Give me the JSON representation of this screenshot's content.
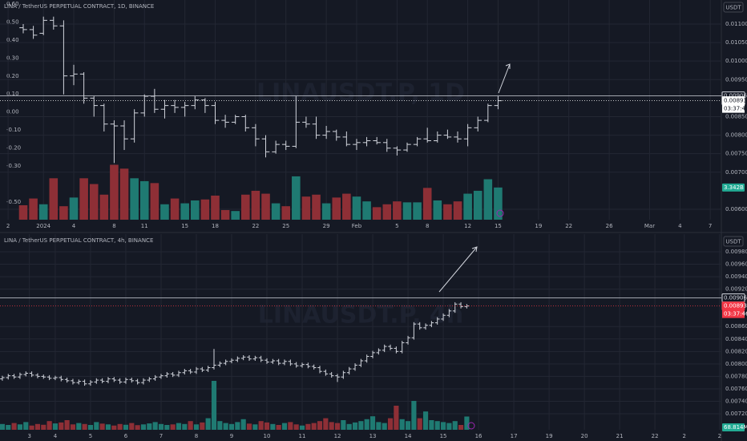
{
  "chart_data": [
    {
      "type": "ohlc",
      "title": "LINA / TetherUS PERPETUAL CONTRACT, 1D, BINANCE",
      "watermark": "LINAUSDT.P, 1D",
      "unit": "USDT",
      "bar_color": "#d1d4dc",
      "up_color": "#1f7a72",
      "down_color": "#8e2f36",
      "grid": true,
      "xlim": [
        -2.3,
        69.1
      ],
      "xticks": [
        {
          "value": -1.5,
          "label": "2"
        },
        {
          "value": 2,
          "label": "2024"
        },
        {
          "value": 5,
          "label": "4"
        },
        {
          "value": 9,
          "label": "8"
        },
        {
          "value": 12,
          "label": "11"
        },
        {
          "value": 16,
          "label": "15"
        },
        {
          "value": 19,
          "label": "18"
        },
        {
          "value": 23,
          "label": "22"
        },
        {
          "value": 26,
          "label": "25"
        },
        {
          "value": 30,
          "label": "29"
        },
        {
          "value": 33,
          "label": "Feb"
        },
        {
          "value": 37,
          "label": "5"
        },
        {
          "value": 40,
          "label": "8"
        },
        {
          "value": 44,
          "label": "12"
        },
        {
          "value": 47,
          "label": "15"
        },
        {
          "value": 51,
          "label": "19"
        },
        {
          "value": 54,
          "label": "22"
        },
        {
          "value": 58,
          "label": "26"
        },
        {
          "value": 62,
          "label": "Mar"
        },
        {
          "value": 65,
          "label": "4"
        },
        {
          "value": 68,
          "label": "7"
        }
      ],
      "ylim": [
        0.005718,
        0.011649
      ],
      "yticks": [
        {
          "value": 0.011,
          "label": "0.01100"
        },
        {
          "value": 0.0105,
          "label": "0.01050"
        },
        {
          "value": 0.01,
          "label": "0.01000"
        },
        {
          "value": 0.0095,
          "label": "0.00950"
        },
        {
          "value": 0.0085,
          "label": "0.00850"
        },
        {
          "value": 0.008,
          "label": "0.00800"
        },
        {
          "value": 0.0075,
          "label": "0.00750"
        },
        {
          "value": 0.007,
          "label": "0.00700"
        },
        {
          "value": 0.006,
          "label": "0.00600"
        }
      ],
      "y2lim": [
        -0.598,
        0.622
      ],
      "y2ticks": [
        {
          "value": 0.6,
          "label": "0.60"
        },
        {
          "value": 0.5,
          "label": "0.50"
        },
        {
          "value": 0.4,
          "label": "0.40"
        },
        {
          "value": 0.3,
          "label": "0.30"
        },
        {
          "value": 0.2,
          "label": "0.20"
        },
        {
          "value": 0.1,
          "label": "0.10"
        },
        {
          "value": 0,
          "label": "0.00"
        },
        {
          "value": -0.1,
          "label": "-0.10"
        },
        {
          "value": -0.2,
          "label": "-0.20"
        },
        {
          "value": -0.3,
          "label": "-0.30"
        },
        {
          "value": -0.5,
          "label": "-0.50"
        }
      ],
      "open": [
        0.0109,
        0.01085,
        0.01075,
        0.0111,
        0.01095,
        0.0096,
        0.00965,
        0.009,
        0.0088,
        0.0083,
        0.00825,
        0.0079,
        0.0086,
        0.00905,
        0.0087,
        0.0088,
        0.00875,
        0.0088,
        0.00895,
        0.0088,
        0.0084,
        0.00835,
        0.0085,
        0.0082,
        0.0079,
        0.00755,
        0.00775,
        0.0077,
        0.00835,
        0.0083,
        0.008,
        0.0081,
        0.00795,
        0.00775,
        0.0078,
        0.00785,
        0.0078,
        0.00765,
        0.0076,
        0.00775,
        0.0079,
        0.00785,
        0.008,
        0.00795,
        0.0079,
        0.0082,
        0.0084,
        0.0088
      ],
      "high": [
        0.011,
        0.01095,
        0.0112,
        0.0112,
        0.0111,
        0.0099,
        0.0097,
        0.00905,
        0.00885,
        0.0084,
        0.0084,
        0.0087,
        0.0091,
        0.00925,
        0.00895,
        0.00895,
        0.0089,
        0.00905,
        0.009,
        0.0089,
        0.00855,
        0.00855,
        0.00855,
        0.0083,
        0.008,
        0.00785,
        0.00785,
        0.00905,
        0.0085,
        0.0085,
        0.00825,
        0.00815,
        0.0081,
        0.0079,
        0.00795,
        0.00795,
        0.0079,
        0.0077,
        0.0078,
        0.00795,
        0.0082,
        0.0081,
        0.00815,
        0.0081,
        0.0083,
        0.0085,
        0.00885,
        0.00906
      ],
      "low": [
        0.01075,
        0.0106,
        0.0107,
        0.01085,
        0.0091,
        0.00935,
        0.00885,
        0.0085,
        0.0081,
        0.00725,
        0.0076,
        0.0078,
        0.0085,
        0.0086,
        0.00845,
        0.0086,
        0.0085,
        0.0087,
        0.0086,
        0.0083,
        0.0082,
        0.0083,
        0.0081,
        0.0077,
        0.0074,
        0.0075,
        0.0076,
        0.00765,
        0.0082,
        0.0079,
        0.0079,
        0.00785,
        0.0077,
        0.0076,
        0.0077,
        0.00775,
        0.00755,
        0.00745,
        0.00755,
        0.0077,
        0.0078,
        0.0078,
        0.0079,
        0.0078,
        0.0077,
        0.0081,
        0.00835,
        0.0087
      ],
      "close": [
        0.01085,
        0.0107,
        0.0111,
        0.01095,
        0.0096,
        0.00965,
        0.009,
        0.0088,
        0.0083,
        0.00825,
        0.0079,
        0.0086,
        0.00905,
        0.0087,
        0.0088,
        0.00875,
        0.0088,
        0.00895,
        0.0088,
        0.0084,
        0.00835,
        0.0085,
        0.0082,
        0.0079,
        0.00755,
        0.00775,
        0.0077,
        0.00835,
        0.0083,
        0.008,
        0.0081,
        0.00795,
        0.00775,
        0.0078,
        0.00785,
        0.0078,
        0.00765,
        0.0076,
        0.00775,
        0.0079,
        0.00785,
        0.008,
        0.00795,
        0.0079,
        0.0082,
        0.0084,
        0.0088,
        0.00893
      ],
      "volume": [
        1.5,
        2.2,
        1.6,
        4.3,
        1.4,
        2.3,
        4.3,
        3.7,
        2.6,
        5.7,
        5.3,
        4.3,
        4.0,
        3.8,
        1.6,
        2.2,
        1.7,
        2.0,
        2.1,
        2.5,
        1.0,
        0.9,
        2.6,
        3.0,
        2.7,
        1.7,
        1.4,
        4.5,
        2.4,
        2.6,
        1.7,
        2.3,
        2.7,
        2.4,
        1.9,
        1.3,
        1.6,
        1.9,
        1.8,
        1.8,
        3.3,
        2.0,
        1.6,
        1.9,
        2.7,
        3.0,
        4.2,
        3.342
      ],
      "volume_label": "3.342B",
      "price_labels": [
        {
          "value": 0.00906,
          "label": "0.00906",
          "color": "#d1d4dc",
          "filled": false
        },
        {
          "value": 0.00893,
          "label": "0.00893",
          "color": "#ffffff",
          "filled": true
        }
      ],
      "countdown": "03:37:46"
    },
    {
      "type": "ohlc",
      "title": "LINA / TetherUS PERPETUAL CONTRACT, 4h, BINANCE",
      "watermark": "LINAUSDT.P, 4h",
      "unit": "USDT",
      "bar_color": "#d1d4dc",
      "up_color": "#1f7a72",
      "down_color": "#8e2f36",
      "grid": true,
      "xlim": [
        -0.4,
        122.3
      ],
      "xticks": [
        {
          "value": 4.6,
          "label": "3"
        },
        {
          "value": 9,
          "label": "4"
        },
        {
          "value": 15,
          "label": "5"
        },
        {
          "value": 21,
          "label": "6"
        },
        {
          "value": 27,
          "label": "7"
        },
        {
          "value": 33,
          "label": "8"
        },
        {
          "value": 39,
          "label": "9"
        },
        {
          "value": 45,
          "label": "10"
        },
        {
          "value": 51,
          "label": "11"
        },
        {
          "value": 57,
          "label": "12"
        },
        {
          "value": 63,
          "label": "13"
        },
        {
          "value": 69,
          "label": "14"
        },
        {
          "value": 75,
          "label": "15"
        },
        {
          "value": 81,
          "label": "16"
        },
        {
          "value": 87,
          "label": "17"
        },
        {
          "value": 93,
          "label": "19"
        },
        {
          "value": 99,
          "label": "20"
        },
        {
          "value": 105,
          "label": "21"
        },
        {
          "value": 111,
          "label": "22"
        },
        {
          "value": 116,
          "label": "2"
        },
        {
          "value": 122,
          "label": "2"
        }
      ],
      "ylim": [
        0.006943,
        0.010083
      ],
      "yticks": [
        {
          "value": 0.0098,
          "label": "0.00980"
        },
        {
          "value": 0.0096,
          "label": "0.00960"
        },
        {
          "value": 0.0094,
          "label": "0.00940"
        },
        {
          "value": 0.0092,
          "label": "0.00920"
        },
        {
          "value": 0.0086,
          "label": "0.00860"
        },
        {
          "value": 0.0084,
          "label": "0.00840"
        },
        {
          "value": 0.0082,
          "label": "0.00820"
        },
        {
          "value": 0.008,
          "label": "0.00800"
        },
        {
          "value": 0.0078,
          "label": "0.00780"
        },
        {
          "value": 0.0076,
          "label": "0.00760"
        },
        {
          "value": 0.0074,
          "label": "0.00740"
        },
        {
          "value": 0.0072,
          "label": "0.00720"
        }
      ],
      "open": [
        0.00776,
        0.00778,
        0.00781,
        0.00779,
        0.00783,
        0.00785,
        0.00782,
        0.0078,
        0.00779,
        0.00777,
        0.00778,
        0.00775,
        0.00773,
        0.0077,
        0.00772,
        0.00768,
        0.00771,
        0.00774,
        0.00772,
        0.00776,
        0.00774,
        0.00771,
        0.00775,
        0.00773,
        0.0077,
        0.00774,
        0.00776,
        0.00779,
        0.00781,
        0.00784,
        0.00782,
        0.00786,
        0.00789,
        0.00787,
        0.00792,
        0.0079,
        0.00794,
        0.00798,
        0.00801,
        0.00804,
        0.00806,
        0.00809,
        0.00811,
        0.00808,
        0.0081,
        0.00806,
        0.00803,
        0.00805,
        0.00801,
        0.00804,
        0.008,
        0.00797,
        0.00799,
        0.00796,
        0.00794,
        0.00788,
        0.00784,
        0.00781,
        0.00779,
        0.00786,
        0.00792,
        0.00798,
        0.00805,
        0.00812,
        0.00818,
        0.00822,
        0.00828,
        0.00825,
        0.0082,
        0.00834,
        0.00842,
        0.00864,
        0.00858,
        0.00862,
        0.00866,
        0.00872,
        0.00878,
        0.00885,
        0.00896,
        0.00892
      ],
      "high": [
        0.00781,
        0.00784,
        0.00784,
        0.00786,
        0.00788,
        0.00788,
        0.00785,
        0.00783,
        0.00782,
        0.00781,
        0.00781,
        0.00778,
        0.00776,
        0.00775,
        0.00775,
        0.00774,
        0.00777,
        0.00777,
        0.00779,
        0.00779,
        0.00777,
        0.00778,
        0.00778,
        0.00776,
        0.00777,
        0.00779,
        0.00782,
        0.00784,
        0.00787,
        0.00787,
        0.00789,
        0.00792,
        0.00792,
        0.00795,
        0.00795,
        0.00797,
        0.00824,
        0.00804,
        0.00807,
        0.00809,
        0.00812,
        0.00814,
        0.00814,
        0.00813,
        0.00813,
        0.00809,
        0.00808,
        0.00808,
        0.00807,
        0.00807,
        0.00803,
        0.00802,
        0.00802,
        0.00799,
        0.00797,
        0.00791,
        0.00787,
        0.00784,
        0.00789,
        0.00795,
        0.00801,
        0.00808,
        0.00815,
        0.00821,
        0.00825,
        0.00831,
        0.00831,
        0.00828,
        0.00837,
        0.00845,
        0.00867,
        0.00867,
        0.00865,
        0.00869,
        0.00875,
        0.00881,
        0.00888,
        0.00899,
        0.00899,
        0.00896
      ],
      "low": [
        0.00773,
        0.00775,
        0.00776,
        0.00776,
        0.0078,
        0.00779,
        0.00777,
        0.00776,
        0.00774,
        0.00774,
        0.00772,
        0.0077,
        0.00767,
        0.00767,
        0.00765,
        0.00765,
        0.00768,
        0.00769,
        0.00769,
        0.00771,
        0.00768,
        0.00768,
        0.0077,
        0.00767,
        0.00767,
        0.00771,
        0.00773,
        0.00776,
        0.00778,
        0.00779,
        0.00779,
        0.00783,
        0.00784,
        0.00784,
        0.00787,
        0.00787,
        0.00791,
        0.00795,
        0.00798,
        0.00801,
        0.00803,
        0.00806,
        0.00805,
        0.00805,
        0.00803,
        0.008,
        0.008,
        0.00798,
        0.00798,
        0.00797,
        0.00794,
        0.00794,
        0.00793,
        0.00791,
        0.00785,
        0.00781,
        0.00778,
        0.00771,
        0.00776,
        0.00783,
        0.00789,
        0.00795,
        0.00802,
        0.00809,
        0.00815,
        0.00819,
        0.00822,
        0.00817,
        0.00817,
        0.00831,
        0.00839,
        0.00855,
        0.00855,
        0.00859,
        0.00863,
        0.00869,
        0.00875,
        0.00882,
        0.00889,
        0.00889
      ],
      "close": [
        0.00778,
        0.00781,
        0.00779,
        0.00783,
        0.00785,
        0.00782,
        0.0078,
        0.00779,
        0.00777,
        0.00778,
        0.00775,
        0.00773,
        0.0077,
        0.00772,
        0.00768,
        0.00771,
        0.00774,
        0.00772,
        0.00776,
        0.00774,
        0.00771,
        0.00775,
        0.00773,
        0.0077,
        0.00774,
        0.00776,
        0.00779,
        0.00781,
        0.00784,
        0.00782,
        0.00786,
        0.00789,
        0.00787,
        0.00792,
        0.0079,
        0.00794,
        0.00798,
        0.00801,
        0.00804,
        0.00806,
        0.00809,
        0.00811,
        0.00808,
        0.0081,
        0.00806,
        0.00803,
        0.00805,
        0.00801,
        0.00804,
        0.008,
        0.00797,
        0.00799,
        0.00796,
        0.00794,
        0.00788,
        0.00784,
        0.00781,
        0.00779,
        0.00786,
        0.00792,
        0.00798,
        0.00805,
        0.00812,
        0.00818,
        0.00822,
        0.00828,
        0.00825,
        0.0082,
        0.00834,
        0.00842,
        0.00864,
        0.00858,
        0.00862,
        0.00866,
        0.00872,
        0.00878,
        0.00885,
        0.00896,
        0.00892,
        0.00893
      ],
      "volume": [
        30,
        25,
        35,
        28,
        40,
        22,
        30,
        26,
        45,
        33,
        38,
        50,
        28,
        35,
        30,
        25,
        40,
        32,
        28,
        22,
        30,
        26,
        35,
        24,
        28,
        33,
        40,
        30,
        25,
        28,
        35,
        30,
        45,
        28,
        38,
        60,
        254,
        45,
        35,
        30,
        40,
        55,
        32,
        28,
        45,
        38,
        30,
        25,
        35,
        40,
        28,
        22,
        30,
        35,
        45,
        60,
        40,
        35,
        50,
        30,
        38,
        45,
        55,
        70,
        40,
        35,
        60,
        125,
        55,
        45,
        150,
        60,
        95,
        50,
        45,
        40,
        35,
        45,
        25,
        68.814
      ],
      "volume_label": "68.814M",
      "price_labels": [
        {
          "value": 0.00906,
          "label": "0.00906",
          "color": "#d1d4dc",
          "filled": false
        },
        {
          "value": 0.00893,
          "label": "0.00893",
          "color": "#f23645",
          "filled": true
        }
      ],
      "countdown": "03:37:46"
    }
  ]
}
